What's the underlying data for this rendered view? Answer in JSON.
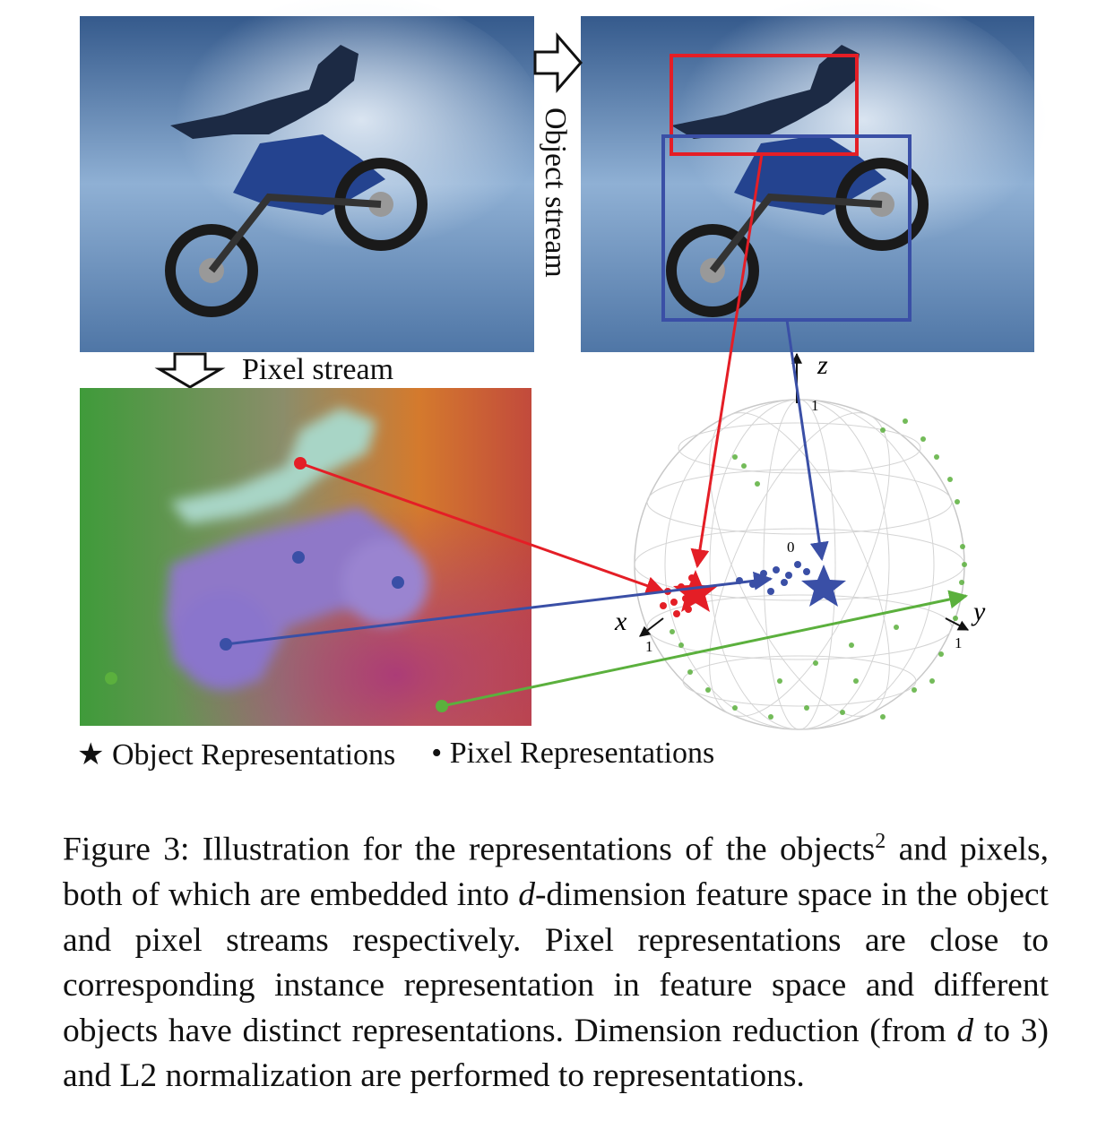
{
  "figure": {
    "pixel_stream_label": "Pixel stream",
    "object_stream_label": "Object stream",
    "axis_labels": {
      "x": "x",
      "y": "y",
      "z": "z"
    },
    "tick_labels": {
      "x": "1",
      "y": "1",
      "z": "1",
      "origin": "0"
    },
    "colors": {
      "object_red": "#e41e26",
      "object_blue": "#3a4fa6",
      "background_green": "#5bb03d"
    }
  },
  "legend": {
    "object_marker": "★",
    "object_label": "Object Representations",
    "pixel_marker": "•",
    "pixel_label": "Pixel Representations"
  },
  "caption": {
    "prefix": "Figure 3: Illustration for the representations of the objects",
    "footnote_mark": "2",
    "line2_a": "and pixels, both of which are embedded into ",
    "d1": "d",
    "line2_b": "-dimension feature space in the object and pixel streams respectively. Pixel representations are close to corresponding instance representation in feature space and different objects have distinct representations. Dimension reduction (from ",
    "d2": "d",
    "line_end_a": " to 3) and L2 normalization are performed to representations."
  }
}
